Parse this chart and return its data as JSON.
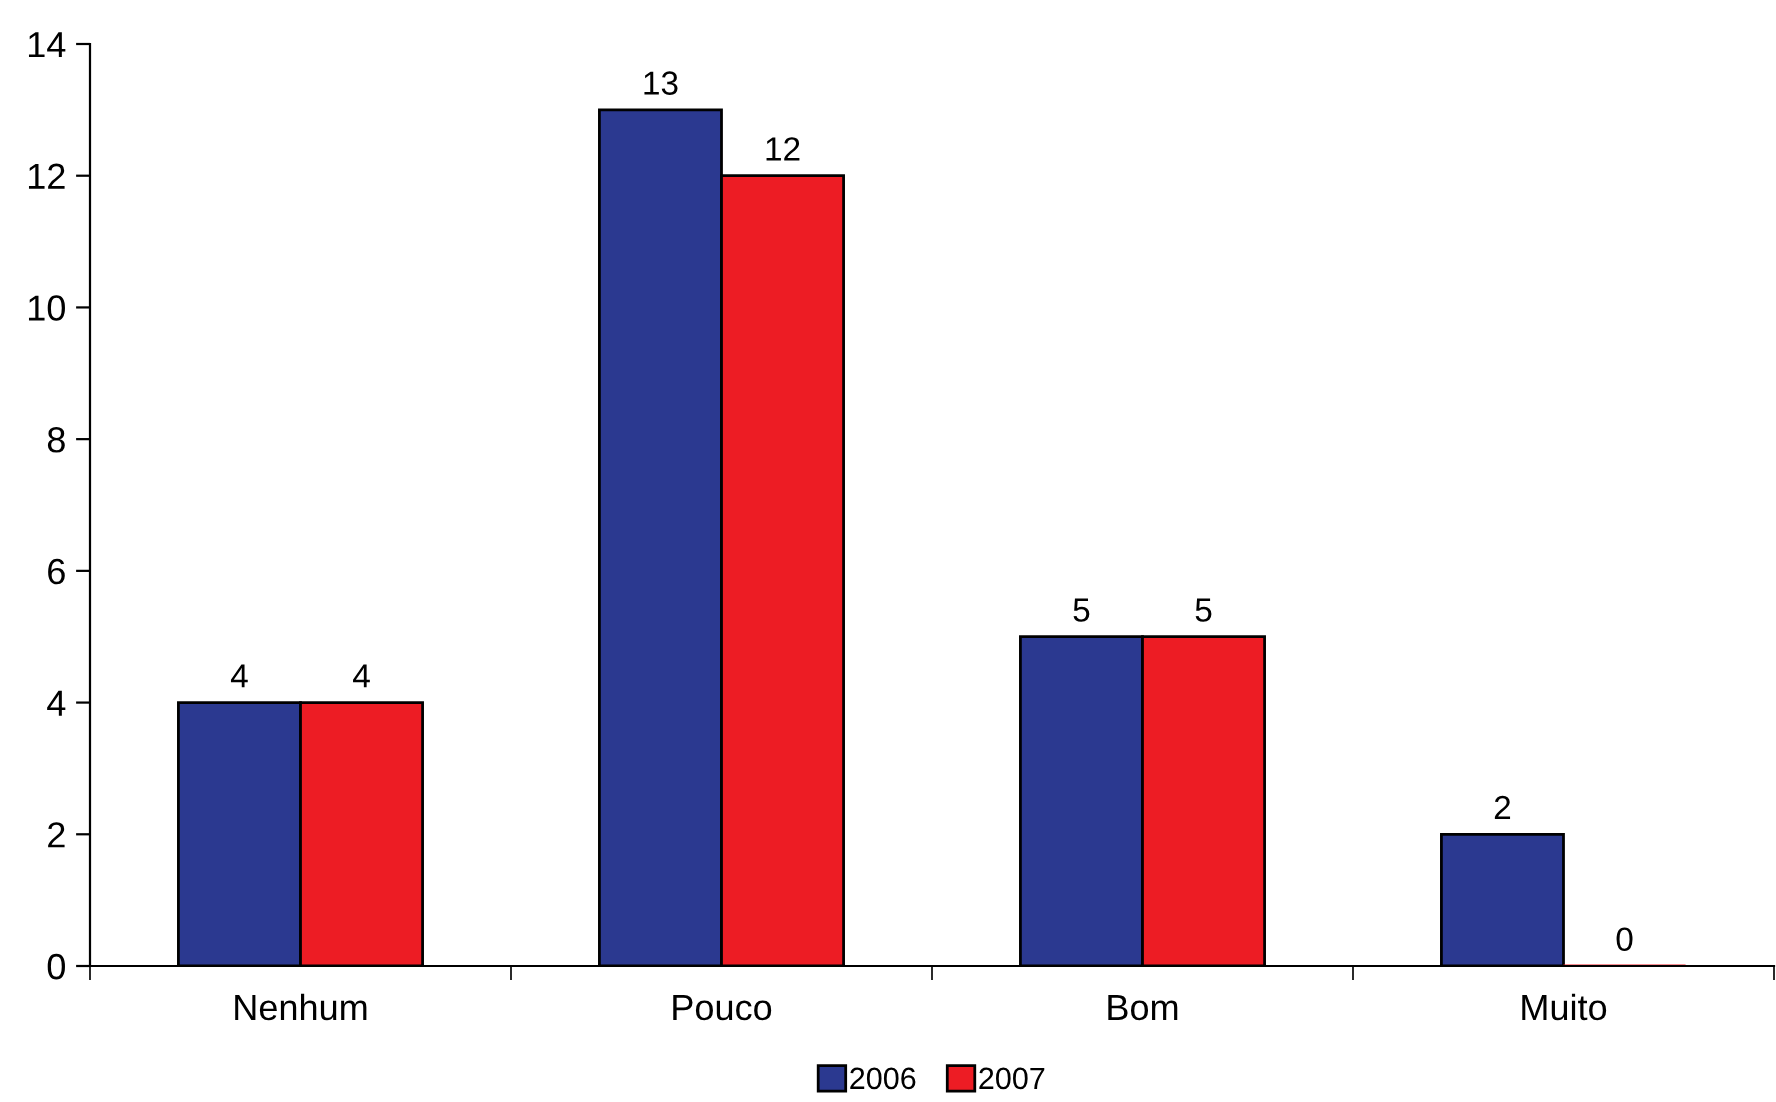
{
  "chart_data": {
    "type": "bar",
    "categories": [
      "Nenhum",
      "Pouco",
      "Bom",
      "Muito"
    ],
    "series": [
      {
        "name": "2006",
        "color": "#2b3990",
        "values": [
          4,
          13,
          5,
          2
        ]
      },
      {
        "name": "2007",
        "color": "#ed1c24",
        "values": [
          4,
          12,
          5,
          0
        ]
      }
    ],
    "ylim": [
      0,
      14
    ],
    "yticks": [
      0,
      2,
      4,
      6,
      8,
      10,
      12,
      14
    ],
    "data_labels": true,
    "legend": "bottom",
    "grid": false
  }
}
